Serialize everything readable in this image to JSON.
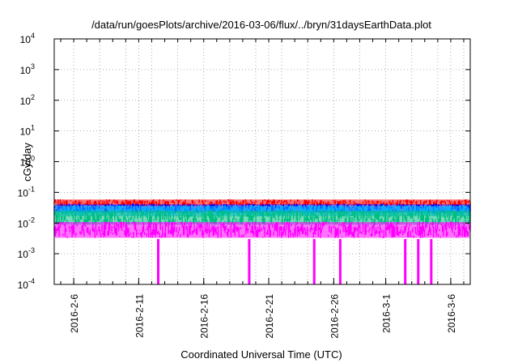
{
  "chart_data": {
    "type": "line",
    "title": "/data/run/goesPlots/archive/2016-03-06/flux/../bryn/31daysEarthData.plot",
    "xlabel": "Coordinated Universal Time (UTC)",
    "ylabel": "cGy/day",
    "yscale": "log",
    "ylim": [
      0.0001,
      10000
    ],
    "xlim": [
      "2016-02-04T12:00",
      "2016-03-07T12:00"
    ],
    "grid": true,
    "y_ticks": [
      {
        "base": "10",
        "exp": "-4"
      },
      {
        "base": "10",
        "exp": "-3"
      },
      {
        "base": "10",
        "exp": "-2"
      },
      {
        "base": "10",
        "exp": "-1"
      },
      {
        "base": "10",
        "exp": "0"
      },
      {
        "base": "10",
        "exp": "1"
      },
      {
        "base": "10",
        "exp": "2"
      },
      {
        "base": "10",
        "exp": "3"
      },
      {
        "base": "10",
        "exp": "4"
      }
    ],
    "x_ticks": [
      "2016-2-6",
      "2016-2-11",
      "2016-2-16",
      "2016-2-21",
      "2016-2-26",
      "2016-3-1",
      "2016-3-6"
    ],
    "series": [
      {
        "color": "#ff0000",
        "typical": 0.045,
        "range": [
          0.035,
          0.065
        ]
      },
      {
        "color": "#0000ff",
        "typical": 0.03,
        "range": [
          0.02,
          0.045
        ]
      },
      {
        "color": "#00b4ff",
        "typical": 0.025,
        "range": [
          0.015,
          0.04
        ]
      },
      {
        "color": "#00c080",
        "typical": 0.015,
        "range": [
          0.008,
          0.028
        ]
      },
      {
        "color": "#ff00ff",
        "typical": 0.006,
        "range": [
          0.003,
          0.012
        ],
        "dropouts": [
          "2016-02-12",
          "2016-02-19",
          "2016-02-24",
          "2016-02-26",
          "2016-03-02",
          "2016-03-03",
          "2016-03-04"
        ]
      }
    ]
  }
}
